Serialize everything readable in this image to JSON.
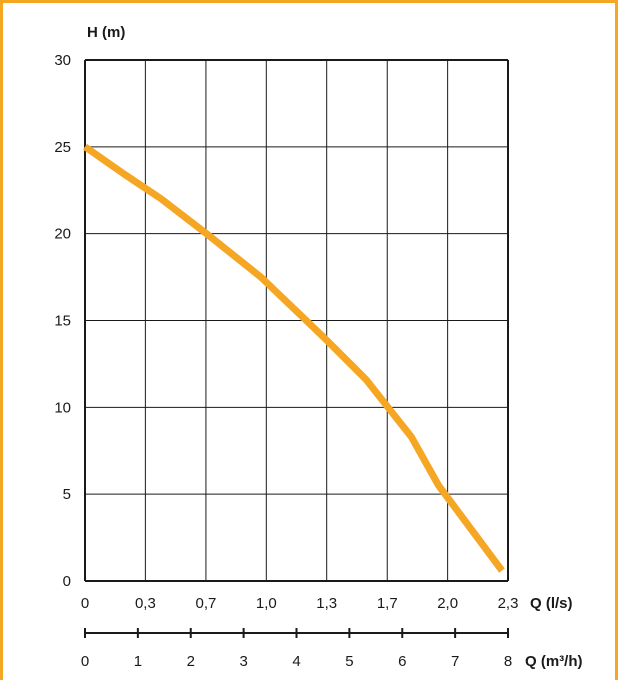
{
  "chart_data": {
    "type": "line",
    "ylabel": "H (m)",
    "xlabel": "Q (l/s)",
    "xlabel2": "Q (m³/h)",
    "ylim": [
      0,
      30
    ],
    "xlim": [
      0,
      2.333
    ],
    "y_ticks": [
      {
        "value": 0,
        "label": "0"
      },
      {
        "value": 5,
        "label": "5"
      },
      {
        "value": 10,
        "label": "10"
      },
      {
        "value": 15,
        "label": "15"
      },
      {
        "value": 20,
        "label": "20"
      },
      {
        "value": 25,
        "label": "25"
      },
      {
        "value": 30,
        "label": "30"
      }
    ],
    "x_ticks": [
      {
        "value": 0,
        "label": "0"
      },
      {
        "value": 0.333,
        "label": "0,3"
      },
      {
        "value": 0.667,
        "label": "0,7"
      },
      {
        "value": 1.0,
        "label": "1,0"
      },
      {
        "value": 1.333,
        "label": "1,3"
      },
      {
        "value": 1.667,
        "label": "1,7"
      },
      {
        "value": 2.0,
        "label": "2,0"
      },
      {
        "value": 2.333,
        "label": "2,3"
      }
    ],
    "x2_ticks": [
      {
        "value": 0,
        "label": "0"
      },
      {
        "value": 1,
        "label": "1"
      },
      {
        "value": 2,
        "label": "2"
      },
      {
        "value": 3,
        "label": "3"
      },
      {
        "value": 4,
        "label": "4"
      },
      {
        "value": 5,
        "label": "5"
      },
      {
        "value": 6,
        "label": "6"
      },
      {
        "value": 7,
        "label": "7"
      },
      {
        "value": 8,
        "label": "8"
      }
    ],
    "x2lim": [
      0,
      8
    ],
    "grid": true,
    "colors": {
      "curve": "#F5A623",
      "grid": "#1a1a1a",
      "frame": "#F5A623"
    },
    "series": [
      {
        "x": [
          0,
          0.22,
          0.42,
          0.67,
          0.97,
          1.2,
          1.33,
          1.55,
          1.8,
          1.95,
          2.1,
          2.3
        ],
        "y": [
          25,
          23.4,
          22.0,
          20.0,
          17.5,
          15.2,
          13.9,
          11.6,
          8.3,
          5.5,
          3.4,
          0.6
        ]
      }
    ]
  }
}
